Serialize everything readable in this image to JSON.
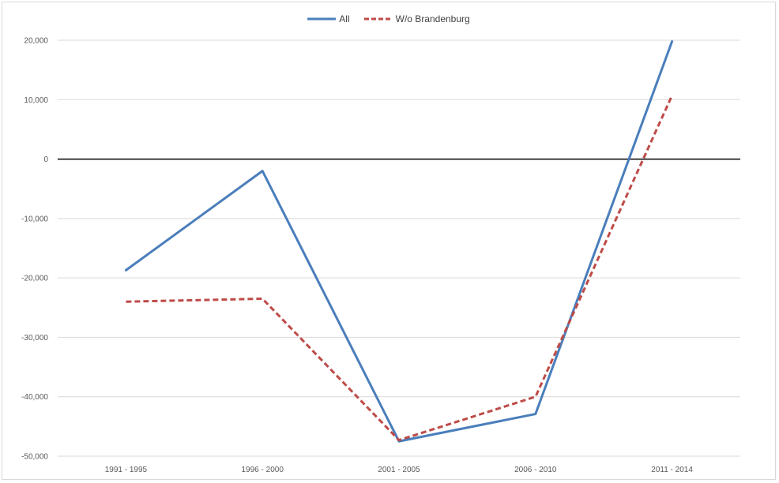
{
  "chart_data": {
    "type": "line",
    "categories": [
      "1991 - 1995",
      "1996 - 2000",
      "2001 - 2005",
      "2006 - 2010",
      "2011 - 2014"
    ],
    "series": [
      {
        "name": "All",
        "values": [
          -18700,
          -2000,
          -47500,
          -42900,
          19800
        ],
        "color": "#4a7ebb",
        "dash": "solid"
      },
      {
        "name": "W/o Brandenburg",
        "values": [
          -24000,
          -23500,
          -47300,
          -40000,
          10700
        ],
        "color": "#be4b48",
        "dash": "dashed"
      }
    ],
    "ylim": [
      -50000,
      20000
    ],
    "yticks": [
      20000,
      10000,
      0,
      -10000,
      -20000,
      -30000,
      -40000,
      -50000
    ],
    "ytick_labels": [
      "20,000",
      "10,000",
      "0",
      "-10,000",
      "-20,000",
      "-30,000",
      "-40,000",
      "-50,000"
    ],
    "grid": true,
    "legend_position": "top-center",
    "zero_line_color": "#000000"
  }
}
